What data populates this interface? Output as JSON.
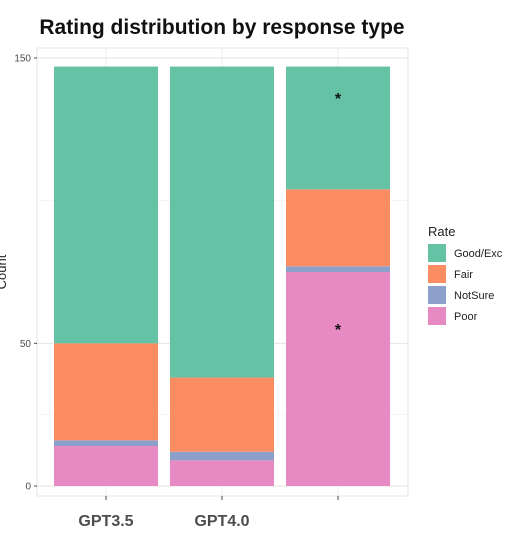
{
  "chart_data": {
    "type": "bar",
    "stacked": true,
    "title": "Rating distribution by response type",
    "xlabel": "",
    "ylabel": "Count",
    "categories": [
      "GPT3.5",
      "GPT4.0",
      ""
    ],
    "ylim": [
      0,
      150
    ],
    "yticks": [
      0,
      50,
      150
    ],
    "grid": true,
    "legend_title": "Rate",
    "legend_position": "right",
    "series": [
      {
        "name": "Poor",
        "values": [
          14,
          9,
          75
        ],
        "color": "#E78AC3"
      },
      {
        "name": "NotSure",
        "values": [
          2,
          3,
          2
        ],
        "color": "#8DA0CB"
      },
      {
        "name": "Fair",
        "values": [
          34,
          26,
          27
        ],
        "color": "#FC8D62"
      },
      {
        "name": "Good/Exc",
        "values": [
          97,
          109,
          43
        ],
        "color": "#66C2A5"
      }
    ],
    "legend_order": [
      "Good/Exc",
      "Fair",
      "NotSure",
      "Poor"
    ],
    "annotations": [
      {
        "category_index": 2,
        "y": 136,
        "text": "*"
      },
      {
        "category_index": 2,
        "y": 55,
        "text": "*"
      }
    ]
  }
}
